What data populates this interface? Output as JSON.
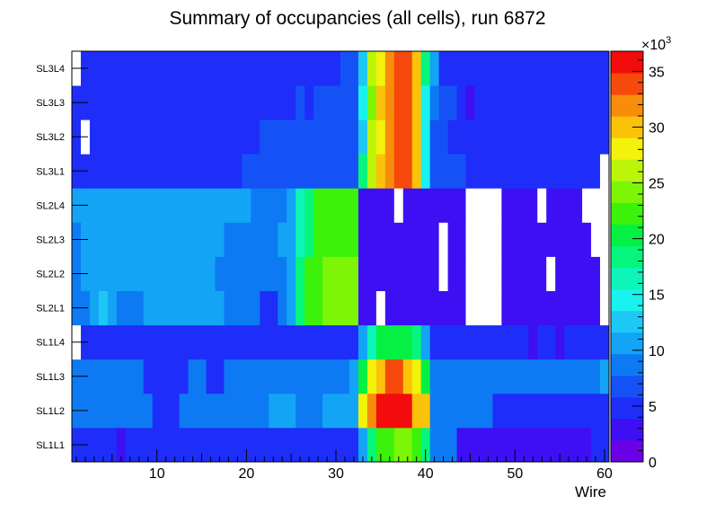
{
  "chart_data": {
    "type": "heatmap",
    "title": "Summary of occupancies (all cells),      run 6872",
    "xlabel": "Wire",
    "ylabel": "",
    "x_range": [
      0.5,
      60.5
    ],
    "x_ticks": [
      10,
      20,
      30,
      40,
      50,
      60
    ],
    "rows": [
      "SL1L1",
      "SL1L2",
      "SL1L3",
      "SL1L4",
      "SL2L1",
      "SL2L2",
      "SL2L3",
      "SL2L4",
      "SL3L1",
      "SL3L2",
      "SL3L3",
      "SL3L4"
    ],
    "z_range": [
      0,
      36800
    ],
    "z_ticks": [
      0,
      5,
      10,
      15,
      20,
      25,
      30,
      35
    ],
    "z_multiplier": "×10",
    "z_multiplier_exp": "3",
    "palette_note": "0 white/empty, low purple/blue, high red",
    "segments": [
      [
        [
          1,
          1,
          4000
        ],
        [
          2,
          5,
          5000
        ],
        [
          6,
          6,
          3000
        ],
        [
          7,
          32,
          5000
        ],
        [
          33,
          33,
          11000
        ],
        [
          34,
          34,
          18000
        ],
        [
          35,
          36,
          22000
        ],
        [
          37,
          38,
          24000
        ],
        [
          39,
          39,
          22000
        ],
        [
          40,
          40,
          18000
        ],
        [
          41,
          43,
          9000
        ],
        [
          44,
          58,
          3000
        ],
        [
          59,
          59,
          5000
        ],
        [
          60,
          60,
          4000
        ]
      ],
      [
        [
          1,
          9,
          8000
        ],
        [
          10,
          12,
          5000
        ],
        [
          13,
          22,
          8000
        ],
        [
          23,
          25,
          10000
        ],
        [
          26,
          28,
          8000
        ],
        [
          29,
          32,
          10000
        ],
        [
          33,
          33,
          28000
        ],
        [
          34,
          34,
          32000
        ],
        [
          35,
          35,
          36000
        ],
        [
          36,
          38,
          36500
        ],
        [
          39,
          40,
          30000
        ],
        [
          41,
          47,
          8000
        ],
        [
          48,
          60,
          5000
        ]
      ],
      [
        [
          1,
          8,
          8000
        ],
        [
          9,
          13,
          5000
        ],
        [
          14,
          15,
          8000
        ],
        [
          16,
          17,
          5000
        ],
        [
          18,
          31,
          8000
        ],
        [
          32,
          32,
          10000
        ],
        [
          33,
          33,
          20000
        ],
        [
          34,
          34,
          28000
        ],
        [
          35,
          35,
          30000
        ],
        [
          36,
          37,
          34000
        ],
        [
          38,
          38,
          30000
        ],
        [
          39,
          39,
          28000
        ],
        [
          40,
          40,
          20000
        ],
        [
          41,
          59,
          8000
        ],
        [
          60,
          60,
          11000
        ]
      ],
      [
        [
          1,
          1,
          0
        ],
        [
          2,
          32,
          5000
        ],
        [
          33,
          33,
          10000
        ],
        [
          34,
          34,
          16000
        ],
        [
          35,
          38,
          20000
        ],
        [
          39,
          39,
          18000
        ],
        [
          40,
          40,
          10000
        ],
        [
          41,
          41,
          5000
        ],
        [
          42,
          51,
          4000
        ],
        [
          52,
          52,
          3000
        ],
        [
          53,
          54,
          4000
        ],
        [
          55,
          55,
          3000
        ],
        [
          56,
          60,
          4000
        ]
      ],
      [
        [
          1,
          2,
          8000
        ],
        [
          3,
          3,
          10000
        ],
        [
          4,
          4,
          12000
        ],
        [
          5,
          5,
          10000
        ],
        [
          6,
          8,
          8000
        ],
        [
          9,
          17,
          10000
        ],
        [
          18,
          21,
          8000
        ],
        [
          22,
          23,
          5000
        ],
        [
          24,
          24,
          8000
        ],
        [
          25,
          25,
          10000
        ],
        [
          26,
          26,
          18000
        ],
        [
          27,
          28,
          23000
        ],
        [
          29,
          32,
          25000
        ],
        [
          33,
          34,
          2000
        ],
        [
          35,
          35,
          0
        ],
        [
          36,
          44,
          2000
        ],
        [
          45,
          48,
          0
        ],
        [
          49,
          59,
          2000
        ],
        [
          60,
          60,
          0
        ]
      ],
      [
        [
          1,
          1,
          8000
        ],
        [
          2,
          2,
          10000
        ],
        [
          3,
          7,
          10000
        ],
        [
          8,
          16,
          10000
        ],
        [
          17,
          21,
          9000
        ],
        [
          22,
          24,
          8000
        ],
        [
          25,
          25,
          10000
        ],
        [
          26,
          26,
          18000
        ],
        [
          27,
          27,
          22000
        ],
        [
          28,
          28,
          23000
        ],
        [
          29,
          32,
          25000
        ],
        [
          33,
          41,
          2000
        ],
        [
          42,
          42,
          0
        ],
        [
          43,
          44,
          2000
        ],
        [
          45,
          48,
          0
        ],
        [
          49,
          53,
          2000
        ],
        [
          54,
          54,
          0
        ],
        [
          55,
          59,
          2000
        ],
        [
          60,
          60,
          0
        ]
      ],
      [
        [
          1,
          1,
          8000
        ],
        [
          2,
          2,
          10000
        ],
        [
          3,
          8,
          10000
        ],
        [
          9,
          13,
          10000
        ],
        [
          14,
          17,
          10000
        ],
        [
          18,
          21,
          9000
        ],
        [
          22,
          23,
          8000
        ],
        [
          24,
          25,
          10000
        ],
        [
          26,
          26,
          16000
        ],
        [
          27,
          27,
          18000
        ],
        [
          28,
          29,
          22000
        ],
        [
          30,
          32,
          22000
        ],
        [
          33,
          41,
          2000
        ],
        [
          42,
          42,
          0
        ],
        [
          43,
          44,
          2000
        ],
        [
          45,
          48,
          0
        ],
        [
          49,
          53,
          2000
        ],
        [
          54,
          58,
          2000
        ],
        [
          59,
          60,
          0
        ]
      ],
      [
        [
          1,
          1,
          10000
        ],
        [
          2,
          3,
          10000
        ],
        [
          4,
          9,
          10000
        ],
        [
          10,
          11,
          10000
        ],
        [
          12,
          20,
          10000
        ],
        [
          21,
          24,
          8000
        ],
        [
          25,
          25,
          10000
        ],
        [
          26,
          26,
          16000
        ],
        [
          27,
          27,
          18000
        ],
        [
          28,
          29,
          22000
        ],
        [
          30,
          32,
          22000
        ],
        [
          33,
          36,
          2000
        ],
        [
          37,
          37,
          0
        ],
        [
          38,
          44,
          2000
        ],
        [
          45,
          48,
          0
        ],
        [
          49,
          52,
          2000
        ],
        [
          53,
          53,
          0
        ],
        [
          54,
          57,
          2000
        ],
        [
          58,
          60,
          0
        ]
      ],
      [
        [
          1,
          1,
          4000
        ],
        [
          2,
          2,
          5000
        ],
        [
          3,
          19,
          5000
        ],
        [
          20,
          32,
          6000
        ],
        [
          33,
          33,
          18000
        ],
        [
          34,
          34,
          26000
        ],
        [
          35,
          35,
          30000
        ],
        [
          36,
          36,
          32000
        ],
        [
          37,
          38,
          34000
        ],
        [
          39,
          39,
          30000
        ],
        [
          40,
          40,
          14000
        ],
        [
          41,
          44,
          7000
        ],
        [
          45,
          59,
          5000
        ],
        [
          60,
          60,
          0
        ]
      ],
      [
        [
          1,
          1,
          4000
        ],
        [
          2,
          2,
          0
        ],
        [
          3,
          21,
          5000
        ],
        [
          22,
          32,
          6000
        ],
        [
          33,
          33,
          12000
        ],
        [
          34,
          34,
          26000
        ],
        [
          35,
          35,
          28000
        ],
        [
          36,
          36,
          32000
        ],
        [
          37,
          38,
          34000
        ],
        [
          39,
          39,
          30000
        ],
        [
          40,
          40,
          14000
        ],
        [
          41,
          42,
          7000
        ],
        [
          43,
          58,
          5000
        ],
        [
          59,
          60,
          4000
        ]
      ],
      [
        [
          1,
          1,
          4000
        ],
        [
          2,
          2,
          5000
        ],
        [
          3,
          25,
          5000
        ],
        [
          26,
          26,
          6000
        ],
        [
          27,
          27,
          5000
        ],
        [
          28,
          31,
          6000
        ],
        [
          32,
          32,
          7000
        ],
        [
          33,
          33,
          14000
        ],
        [
          34,
          34,
          24000
        ],
        [
          35,
          35,
          30000
        ],
        [
          36,
          36,
          32000
        ],
        [
          37,
          38,
          34000
        ],
        [
          39,
          39,
          30000
        ],
        [
          40,
          40,
          14000
        ],
        [
          41,
          41,
          8000
        ],
        [
          42,
          43,
          6000
        ],
        [
          44,
          44,
          5000
        ],
        [
          45,
          45,
          3000
        ],
        [
          46,
          57,
          5000
        ],
        [
          58,
          60,
          4000
        ]
      ],
      [
        [
          1,
          1,
          0
        ],
        [
          2,
          3,
          4000
        ],
        [
          4,
          30,
          5000
        ],
        [
          31,
          32,
          6000
        ],
        [
          33,
          33,
          12000
        ],
        [
          34,
          34,
          26000
        ],
        [
          35,
          35,
          28000
        ],
        [
          36,
          36,
          32000
        ],
        [
          37,
          38,
          34000
        ],
        [
          39,
          39,
          30000
        ],
        [
          40,
          40,
          18000
        ],
        [
          41,
          41,
          11000
        ],
        [
          42,
          57,
          5000
        ],
        [
          58,
          60,
          4000
        ]
      ]
    ]
  }
}
